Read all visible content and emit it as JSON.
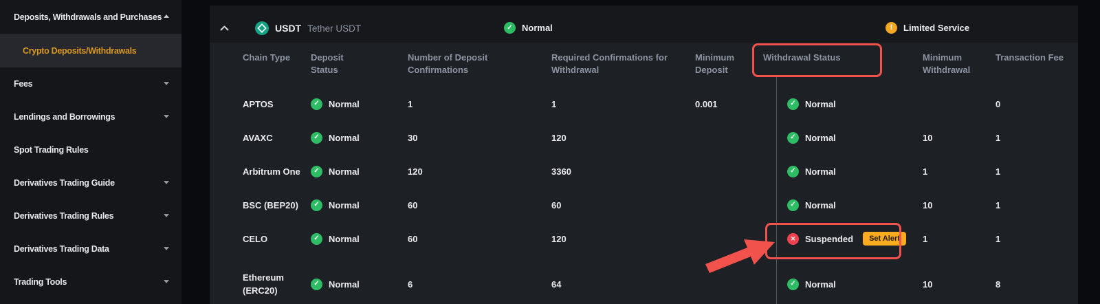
{
  "sidebar": {
    "items": [
      {
        "label": "Deposits, Withdrawals and Purchases",
        "arrow": "up"
      },
      {
        "label": "Crypto Deposits/Withdrawals",
        "sub": true,
        "active": true
      },
      {
        "label": "Fees",
        "arrow": "down"
      },
      {
        "label": "Lendings and Borrowings",
        "arrow": "down"
      },
      {
        "label": "Spot Trading Rules"
      },
      {
        "label": "Derivatives Trading Guide",
        "arrow": "down"
      },
      {
        "label": "Derivatives Trading Rules",
        "arrow": "down"
      },
      {
        "label": "Derivatives Trading Data",
        "arrow": "down"
      },
      {
        "label": "Trading Tools",
        "arrow": "down"
      }
    ]
  },
  "coin_header": {
    "symbol": "USDT",
    "name": "Tether USDT",
    "deposit_overall": "Normal",
    "withdrawal_overall": "Limited Service"
  },
  "table": {
    "columns": [
      "Chain Type",
      "Deposit Status",
      "Number of Deposit Confirmations",
      "Required Confirmations for Withdrawal",
      "Minimum Deposit",
      "Withdrawal Status",
      "Minimum Withdrawal",
      "Transaction Fee"
    ],
    "rows": [
      {
        "chain": "APTOS",
        "deposit_status": "Normal",
        "deposit_confirmations": "1",
        "withdrawal_confirmations": "1",
        "min_deposit": "0.001",
        "withdrawal_status": "Normal",
        "min_withdrawal": "",
        "fee": "0"
      },
      {
        "chain": "AVAXC",
        "deposit_status": "Normal",
        "deposit_confirmations": "30",
        "withdrawal_confirmations": "120",
        "min_deposit": "",
        "withdrawal_status": "Normal",
        "min_withdrawal": "10",
        "fee": "1"
      },
      {
        "chain": "Arbitrum One",
        "deposit_status": "Normal",
        "deposit_confirmations": "120",
        "withdrawal_confirmations": "3360",
        "min_deposit": "",
        "withdrawal_status": "Normal",
        "min_withdrawal": "1",
        "fee": "1"
      },
      {
        "chain": "BSC (BEP20)",
        "deposit_status": "Normal",
        "deposit_confirmations": "60",
        "withdrawal_confirmations": "60",
        "min_deposit": "",
        "withdrawal_status": "Normal",
        "min_withdrawal": "10",
        "fee": "1"
      },
      {
        "chain": "CELO",
        "deposit_status": "Normal",
        "deposit_confirmations": "60",
        "withdrawal_confirmations": "120",
        "min_deposit": "",
        "withdrawal_status": "Suspended",
        "withdrawal_action": "Set Alert",
        "min_withdrawal": "1",
        "fee": "1"
      },
      {
        "chain": "Ethereum (ERC20)",
        "deposit_status": "Normal",
        "deposit_confirmations": "6",
        "withdrawal_confirmations": "64",
        "min_deposit": "",
        "withdrawal_status": "Normal",
        "min_withdrawal": "10",
        "fee": "8"
      }
    ]
  },
  "icons": {
    "check": "✓",
    "cross": "✕",
    "warning": "!"
  },
  "colors": {
    "accent_gold": "#d9991f",
    "status_green": "#2ebd65",
    "status_red": "#f04352",
    "warning_amber": "#f5a623",
    "annotation_red": "#f2524c",
    "usdt_teal": "#14a287",
    "set_alert_bg": "#fbab20"
  }
}
